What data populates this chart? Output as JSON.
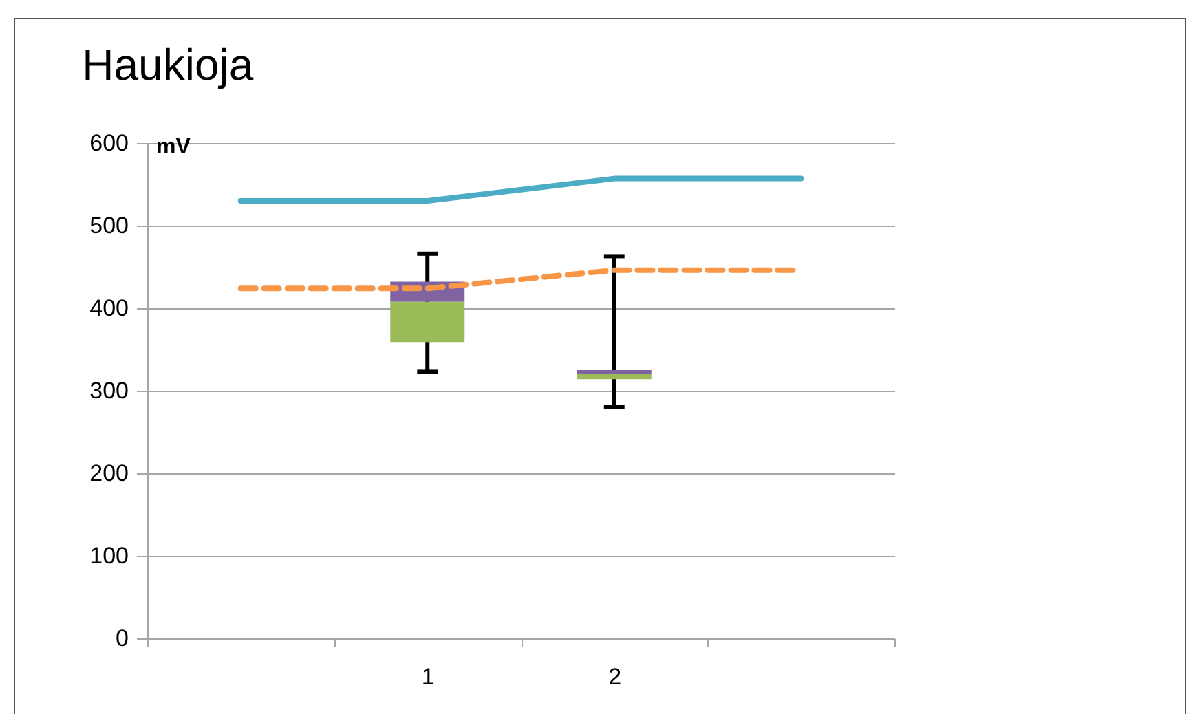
{
  "chart_data": {
    "type": "box",
    "title": "Haukioja",
    "ylabel": "mV",
    "categories": [
      null,
      "1",
      "2",
      null
    ],
    "ylim": [
      0,
      600
    ],
    "yticks": [
      0,
      100,
      200,
      300,
      400,
      500,
      600
    ],
    "grid": "y",
    "series": [
      {
        "colors": [
          null,
          [
            "#9bbb59",
            "#8064a2"
          ],
          [
            "#9bbb59",
            "#8064a2"
          ],
          null
        ],
        "boxes": [
          null,
          {
            "low": 323,
            "q1": 359,
            "median": 408,
            "q3": 432,
            "high": 466
          },
          {
            "low": 280,
            "q1": 314,
            "median": 320,
            "q3": 325,
            "high": 463
          },
          null
        ]
      },
      {
        "type": "line",
        "color": "#4bacc6",
        "line_style": "solid",
        "values": [
          530,
          530,
          557,
          557
        ]
      },
      {
        "type": "line",
        "color": "#f79646",
        "line_style": "dashed",
        "values": [
          424,
          424,
          446,
          446
        ]
      }
    ]
  }
}
